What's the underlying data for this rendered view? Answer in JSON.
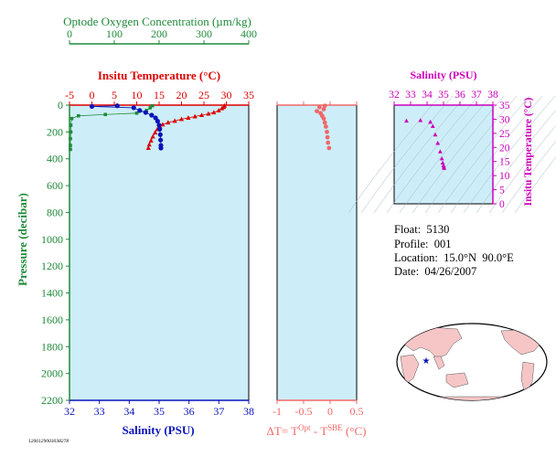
{
  "colors": {
    "panel_bg": "#cdeef8",
    "oxygen": "#1f8a3a",
    "temperature": "#dd0000",
    "salinity": "#0a14b8",
    "delta_t": "#f06868",
    "ts_accent": "#cc00bb",
    "land": "#f6c6c6"
  },
  "serial": "1206129003038278",
  "info": {
    "float": "Float:  5130",
    "profile": "Profile:  001",
    "location": "Location:  15.0°N  90.0°E",
    "date": "Date:  04/26/2007"
  },
  "chart_data": [
    {
      "type": "line",
      "panel": "main_profile",
      "ylabel": "Pressure (decibar)",
      "ylim": [
        2200,
        0
      ],
      "yticks": [
        0,
        200,
        400,
        600,
        800,
        1000,
        1200,
        1400,
        1600,
        1800,
        2000,
        2200
      ],
      "axes": {
        "oxygen": {
          "label": "Optode Oxygen Concentration (µm/kg)",
          "lim": [
            0,
            400
          ],
          "ticks": [
            0,
            100,
            200,
            300,
            400
          ]
        },
        "temperature": {
          "label": "Insitu Temperature (°C)",
          "lim": [
            -5,
            35
          ],
          "ticks": [
            -5,
            0,
            5,
            10,
            15,
            20,
            25,
            30,
            35
          ]
        },
        "salinity": {
          "label": "Salinity (PSU)",
          "lim": [
            32,
            38
          ],
          "ticks": [
            32,
            33,
            34,
            35,
            36,
            37,
            38
          ]
        }
      },
      "series": [
        {
          "key": "oxygen",
          "axis": "oxygen",
          "marker": "square",
          "points": [
            [
              185,
              5
            ],
            [
              180,
              20
            ],
            [
              172,
              40
            ],
            [
              150,
              60
            ],
            [
              80,
              70
            ],
            [
              20,
              80
            ],
            [
              5,
              100
            ],
            [
              3,
              150
            ],
            [
              3,
              200
            ],
            [
              2,
              250
            ],
            [
              2,
              300
            ],
            [
              2,
              330
            ]
          ]
        },
        {
          "key": "temperature",
          "axis": "temperature",
          "marker": "triangle",
          "points": [
            [
              29.6,
              5
            ],
            [
              29.4,
              15
            ],
            [
              29.0,
              25
            ],
            [
              28.3,
              40
            ],
            [
              27.2,
              55
            ],
            [
              26.0,
              65
            ],
            [
              24.5,
              75
            ],
            [
              23.0,
              85
            ],
            [
              21.5,
              95
            ],
            [
              20.0,
              105
            ],
            [
              18.5,
              118
            ],
            [
              17.0,
              130
            ],
            [
              15.8,
              145
            ],
            [
              15.2,
              160
            ],
            [
              14.6,
              180
            ],
            [
              14.1,
              205
            ],
            [
              13.6,
              235
            ],
            [
              13.2,
              265
            ],
            [
              12.8,
              295
            ],
            [
              12.6,
              320
            ]
          ]
        },
        {
          "key": "salinity",
          "axis": "salinity",
          "marker": "circle",
          "points": [
            [
              33.6,
              5
            ],
            [
              32.75,
              10
            ],
            [
              34.15,
              20
            ],
            [
              34.35,
              40
            ],
            [
              34.55,
              55
            ],
            [
              34.75,
              75
            ],
            [
              34.88,
              95
            ],
            [
              34.95,
              120
            ],
            [
              35.0,
              150
            ],
            [
              35.02,
              180
            ],
            [
              35.04,
              220
            ],
            [
              35.05,
              260
            ],
            [
              35.06,
              300
            ],
            [
              35.06,
              320
            ]
          ]
        }
      ]
    },
    {
      "type": "scatter",
      "panel": "delta_t",
      "xlabel": "ΔT= T",
      "xlabel_sup1": "Opt",
      "xlabel_mid": " - T",
      "xlabel_sup2": "SBE",
      "xlabel_tail": " (°C)",
      "xlim": [
        -1.0,
        0.5
      ],
      "xticks": [
        -1.0,
        -0.5,
        0.0,
        0.5
      ],
      "ylim": [
        2200,
        0
      ],
      "points": [
        [
          -0.1,
          5
        ],
        [
          -0.2,
          15
        ],
        [
          -0.12,
          30
        ],
        [
          -0.25,
          45
        ],
        [
          -0.18,
          60
        ],
        [
          -0.15,
          80
        ],
        [
          -0.12,
          100
        ],
        [
          -0.1,
          130
        ],
        [
          -0.08,
          160
        ],
        [
          -0.06,
          200
        ],
        [
          -0.05,
          240
        ],
        [
          -0.04,
          280
        ],
        [
          -0.02,
          320
        ]
      ]
    },
    {
      "type": "scatter",
      "panel": "ts_diagram",
      "xlabel": "Salinity (PSU)",
      "ylabel": "Insitu Temperature (°C)",
      "xlim": [
        32,
        38
      ],
      "ylim": [
        0,
        35
      ],
      "xticks": [
        32,
        33,
        34,
        35,
        36,
        37,
        38
      ],
      "yticks": [
        0,
        5,
        10,
        15,
        20,
        25,
        30,
        35
      ],
      "points": [
        [
          33.6,
          29.6
        ],
        [
          32.75,
          29.4
        ],
        [
          34.2,
          29.0
        ],
        [
          34.35,
          27.5
        ],
        [
          34.5,
          24.5
        ],
        [
          34.65,
          21.5
        ],
        [
          34.8,
          18.5
        ],
        [
          34.9,
          16.0
        ],
        [
          34.95,
          14.5
        ],
        [
          35.0,
          13.6
        ],
        [
          35.02,
          13.0
        ],
        [
          35.04,
          12.6
        ]
      ]
    }
  ]
}
